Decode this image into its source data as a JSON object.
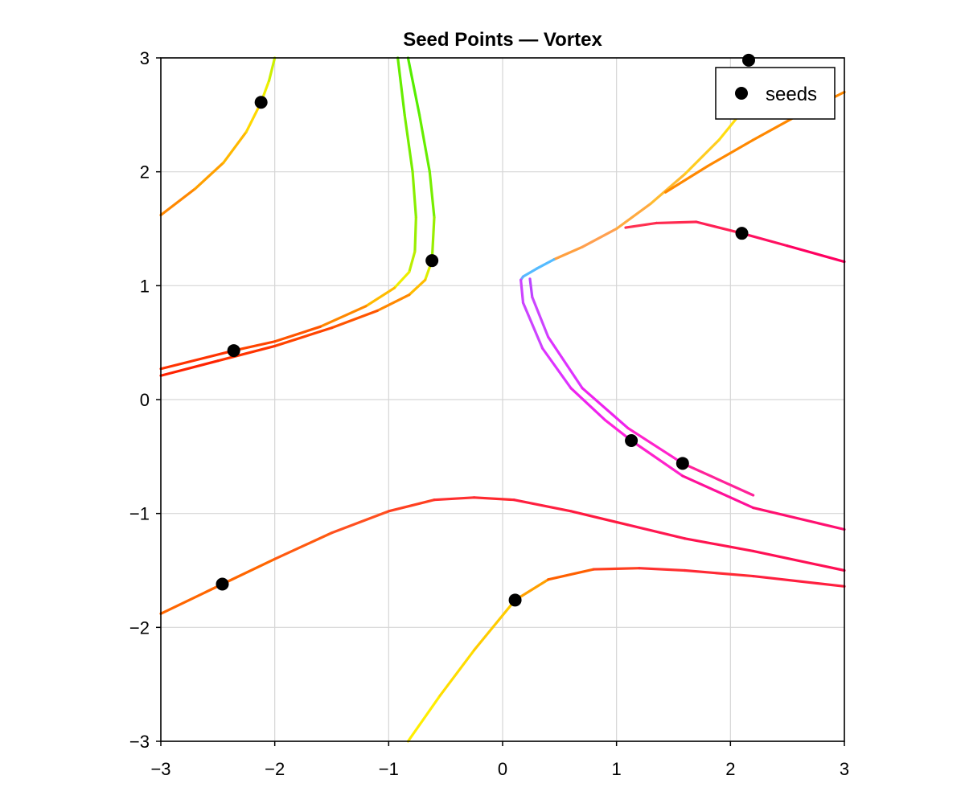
{
  "chart_data": {
    "type": "line",
    "title": "Seed Points — Vortex",
    "xlabel": "",
    "ylabel": "",
    "xlim": [
      -3,
      3
    ],
    "ylim": [
      -3,
      3
    ],
    "xticks": [
      -3,
      -2,
      -1,
      0,
      1,
      2,
      3
    ],
    "yticks": [
      -3,
      -2,
      -1,
      0,
      1,
      2,
      3
    ],
    "xtick_labels": [
      "−3",
      "−2",
      "−1",
      "0",
      "1",
      "2",
      "3"
    ],
    "ytick_labels": [
      "−3",
      "−2",
      "−1",
      "0",
      "1",
      "2",
      "3"
    ],
    "grid": true,
    "legend": {
      "placement": "top-right",
      "entries": [
        {
          "label": "seeds",
          "marker": "circle",
          "color": "#000000"
        }
      ]
    },
    "seeds": {
      "name": "seeds",
      "x": [
        -2.12,
        -0.62,
        -2.36,
        1.13,
        1.58,
        -2.46,
        0.11,
        2.1,
        2.16
      ],
      "y": [
        2.61,
        1.22,
        0.43,
        -0.36,
        -0.56,
        -1.62,
        -1.76,
        1.46,
        2.98
      ],
      "color": "#000000"
    },
    "streamlines": [
      {
        "points": [
          [
            -3,
            1.62
          ],
          [
            -2.7,
            1.85
          ],
          [
            -2.45,
            2.08
          ],
          [
            -2.25,
            2.35
          ],
          [
            -2.12,
            2.61
          ],
          [
            -2.05,
            2.8
          ],
          [
            -2,
            3
          ]
        ],
        "colors": [
          "#ff8800",
          "#ffa000",
          "#ffb800",
          "#ffd800",
          "#eeee00",
          "#ccf000",
          "#b8f000"
        ]
      },
      {
        "points": [
          [
            -0.92,
            3
          ],
          [
            -0.86,
            2.5
          ],
          [
            -0.79,
            2.0
          ],
          [
            -0.76,
            1.6
          ],
          [
            -0.77,
            1.3
          ],
          [
            -0.82,
            1.12
          ],
          [
            -0.95,
            0.98
          ],
          [
            -1.2,
            0.82
          ],
          [
            -1.6,
            0.64
          ],
          [
            -2.0,
            0.51
          ],
          [
            -2.36,
            0.43
          ],
          [
            -3,
            0.27
          ]
        ],
        "colors": [
          "#66ee00",
          "#77ee00",
          "#88ee00",
          "#99ee00",
          "#bbee00",
          "#eeee00",
          "#ffbb00",
          "#ff8800",
          "#ff5500",
          "#ff4400",
          "#ff3300",
          "#ff2200"
        ]
      },
      {
        "points": [
          [
            -0.83,
            3
          ],
          [
            -0.73,
            2.5
          ],
          [
            -0.64,
            2.0
          ],
          [
            -0.6,
            1.6
          ],
          [
            -0.62,
            1.22
          ],
          [
            -0.68,
            1.05
          ],
          [
            -0.82,
            0.92
          ],
          [
            -1.1,
            0.78
          ],
          [
            -1.5,
            0.63
          ],
          [
            -2.0,
            0.47
          ],
          [
            -2.5,
            0.34
          ],
          [
            -3,
            0.21
          ]
        ],
        "colors": [
          "#55ee00",
          "#66ee00",
          "#77ee00",
          "#99ee00",
          "#ddee00",
          "#ffbb00",
          "#ff8800",
          "#ff5500",
          "#ff4400",
          "#ff3300",
          "#ff2200",
          "#ff2200"
        ]
      },
      {
        "points": [
          [
            -3,
            -1.88
          ],
          [
            -2.46,
            -1.62
          ],
          [
            -2.0,
            -1.4
          ],
          [
            -1.5,
            -1.17
          ],
          [
            -1.0,
            -0.98
          ],
          [
            -0.6,
            -0.88
          ],
          [
            -0.25,
            -0.86
          ],
          [
            0.1,
            -0.88
          ],
          [
            0.6,
            -0.98
          ],
          [
            1.1,
            -1.1
          ],
          [
            1.6,
            -1.22
          ],
          [
            2.2,
            -1.33
          ],
          [
            3,
            -1.5
          ]
        ],
        "colors": [
          "#ff6600",
          "#ff6600",
          "#ff5a10",
          "#ff5020",
          "#ff4020",
          "#ff3030",
          "#ff2a30",
          "#ff2040",
          "#ff1a40",
          "#ff1850",
          "#ff1450",
          "#ff1055",
          "#ff1055"
        ]
      },
      {
        "points": [
          [
            -0.83,
            -3
          ],
          [
            -0.55,
            -2.6
          ],
          [
            -0.25,
            -2.2
          ],
          [
            0.11,
            -1.76
          ],
          [
            0.4,
            -1.58
          ],
          [
            0.8,
            -1.49
          ],
          [
            1.2,
            -1.48
          ],
          [
            1.6,
            -1.5
          ],
          [
            2.2,
            -1.55
          ],
          [
            3,
            -1.64
          ]
        ],
        "colors": [
          "#ffee00",
          "#ffdd00",
          "#ffcc00",
          "#ffa000",
          "#ff6000",
          "#ff4020",
          "#ff3030",
          "#ff2a35",
          "#ff2040",
          "#ff1a40"
        ]
      },
      {
        "points": [
          [
            0.45,
            1.23
          ],
          [
            0.7,
            1.34
          ],
          [
            1.0,
            1.5
          ],
          [
            1.3,
            1.72
          ],
          [
            1.6,
            1.98
          ],
          [
            1.9,
            2.28
          ],
          [
            2.16,
            2.6
          ],
          [
            2.3,
            2.8
          ]
        ],
        "colors": [
          "#ffa040",
          "#ffa050",
          "#ffaa40",
          "#ffbb30",
          "#ffcc20",
          "#ffdd10",
          "#ffee00",
          "#ffee00"
        ]
      },
      {
        "points": [
          [
            0.45,
            1.23
          ],
          [
            0.3,
            1.15
          ],
          [
            0.18,
            1.08
          ],
          [
            0.16,
            1.05
          ]
        ],
        "colors": [
          "#55bbff",
          "#55bbff",
          "#66aaff",
          "#66aaff"
        ]
      },
      {
        "points": [
          [
            1.43,
            1.82
          ],
          [
            1.8,
            2.05
          ],
          [
            2.2,
            2.28
          ],
          [
            2.6,
            2.5
          ],
          [
            3,
            2.7
          ]
        ],
        "colors": [
          "#ff8800",
          "#ff8800",
          "#ff8800",
          "#ff8800",
          "#ff8800"
        ]
      },
      {
        "points": [
          [
            1.08,
            1.51
          ],
          [
            1.35,
            1.55
          ],
          [
            1.7,
            1.56
          ],
          [
            2.1,
            1.46
          ],
          [
            2.5,
            1.35
          ],
          [
            3,
            1.21
          ]
        ],
        "colors": [
          "#ff3050",
          "#ff2a50",
          "#ff2055",
          "#ff1060",
          "#ff0060",
          "#ff0060"
        ]
      },
      {
        "points": [
          [
            0.16,
            1.05
          ],
          [
            0.18,
            0.85
          ],
          [
            0.35,
            0.45
          ],
          [
            0.6,
            0.1
          ],
          [
            0.9,
            -0.18
          ],
          [
            1.13,
            -0.36
          ],
          [
            1.58,
            -0.67
          ],
          [
            2.2,
            -0.95
          ],
          [
            3,
            -1.14
          ]
        ],
        "colors": [
          "#cc44ff",
          "#cc44ff",
          "#dd33ff",
          "#ee22ee",
          "#ff22dd",
          "#ff22cc",
          "#ff1099",
          "#ff1070",
          "#ff0060"
        ]
      },
      {
        "points": [
          [
            0.24,
            1.06
          ],
          [
            0.26,
            0.9
          ],
          [
            0.4,
            0.55
          ],
          [
            0.7,
            0.1
          ],
          [
            1.1,
            -0.25
          ],
          [
            1.58,
            -0.56
          ],
          [
            2.2,
            -0.84
          ]
        ],
        "colors": [
          "#bb44ff",
          "#cc44ff",
          "#dd33ff",
          "#ee22ee",
          "#ff22cc",
          "#ff2299",
          "#ff1070"
        ]
      }
    ]
  }
}
